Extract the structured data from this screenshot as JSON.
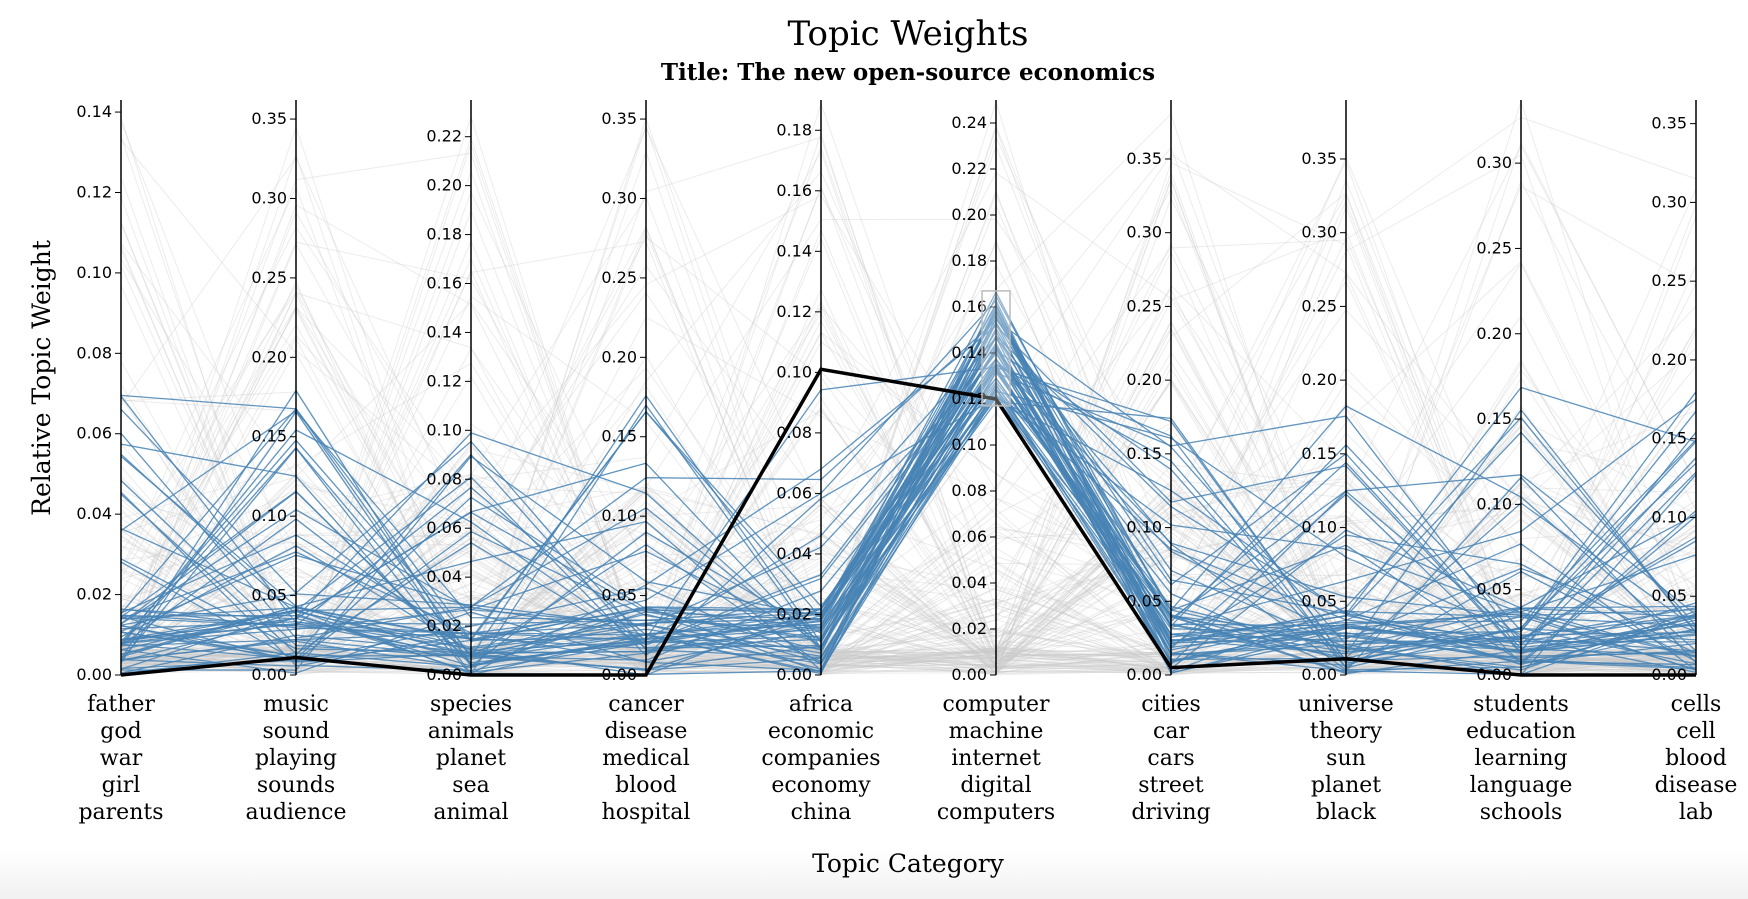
{
  "chart_data": {
    "type": "parallel-coordinates",
    "title": "Topic Weights",
    "subtitle": "Title: The new open-source economics",
    "xlabel": "Topic Category",
    "ylabel": "Relative Topic Weight",
    "grid": false,
    "colors": {
      "context": "#c8c8c8",
      "brushed": "#4682b4",
      "highlight": "#000000",
      "brush_box": "#bbbbbb"
    },
    "axes": [
      {
        "words": [
          "father",
          "god",
          "war",
          "girl",
          "parents"
        ],
        "ylim": [
          0,
          0.143
        ],
        "ticks": [
          "0.00",
          "0.02",
          "0.04",
          "0.06",
          "0.08",
          "0.10",
          "0.12",
          "0.14"
        ]
      },
      {
        "words": [
          "music",
          "sound",
          "playing",
          "sounds",
          "audience"
        ],
        "ylim": [
          0,
          0.362
        ],
        "ticks": [
          "0.00",
          "0.05",
          "0.10",
          "0.15",
          "0.20",
          "0.25",
          "0.30",
          "0.35"
        ]
      },
      {
        "words": [
          "species",
          "animals",
          "planet",
          "sea",
          "animal"
        ],
        "ylim": [
          0,
          0.235
        ],
        "ticks": [
          "0.00",
          "0.02",
          "0.04",
          "0.06",
          "0.08",
          "0.10",
          "0.12",
          "0.14",
          "0.16",
          "0.18",
          "0.20",
          "0.22"
        ]
      },
      {
        "words": [
          "cancer",
          "disease",
          "medical",
          "blood",
          "hospital"
        ],
        "ylim": [
          0,
          0.362
        ],
        "ticks": [
          "0.00",
          "0.05",
          "0.10",
          "0.15",
          "0.20",
          "0.25",
          "0.30",
          "0.35"
        ]
      },
      {
        "words": [
          "africa",
          "economic",
          "companies",
          "economy",
          "china"
        ],
        "ylim": [
          0,
          0.19
        ],
        "ticks": [
          "0.00",
          "0.02",
          "0.04",
          "0.06",
          "0.08",
          "0.10",
          "0.12",
          "0.14",
          "0.16",
          "0.18"
        ]
      },
      {
        "words": [
          "computer",
          "machine",
          "internet",
          "digital",
          "computers"
        ],
        "ylim": [
          0,
          0.25
        ],
        "ticks": [
          "0.00",
          "0.02",
          "0.04",
          "0.06",
          "0.08",
          "0.10",
          "0.12",
          "0.14",
          "0.16",
          "0.18",
          "0.20",
          "0.22",
          "0.24"
        ]
      },
      {
        "words": [
          "cities",
          "car",
          "cars",
          "street",
          "driving"
        ],
        "ylim": [
          0,
          0.39
        ],
        "ticks": [
          "0.00",
          "0.05",
          "0.10",
          "0.15",
          "0.20",
          "0.25",
          "0.30",
          "0.35"
        ]
      },
      {
        "words": [
          "universe",
          "theory",
          "sun",
          "planet",
          "black"
        ],
        "ylim": [
          0,
          0.39
        ],
        "ticks": [
          "0.00",
          "0.05",
          "0.10",
          "0.15",
          "0.20",
          "0.25",
          "0.30",
          "0.35"
        ]
      },
      {
        "words": [
          "students",
          "education",
          "learning",
          "language",
          "schools"
        ],
        "ylim": [
          0,
          0.337
        ],
        "ticks": [
          "0.00",
          "0.05",
          "0.10",
          "0.15",
          "0.20",
          "0.25",
          "0.30"
        ]
      },
      {
        "words": [
          "cells",
          "cell",
          "blood",
          "disease",
          "lab"
        ],
        "ylim": [
          0,
          0.365
        ],
        "ticks": [
          "0.00",
          "0.05",
          "0.10",
          "0.15",
          "0.20",
          "0.25",
          "0.30",
          "0.35"
        ]
      }
    ],
    "highlighted_document": {
      "name": "The new open-source economics",
      "values": [
        0.0,
        0.011,
        0.0,
        0.0,
        0.101,
        0.12,
        0.005,
        0.011,
        0.0,
        0.0
      ]
    },
    "brush": {
      "axis": 5,
      "range": [
        0.117,
        0.167
      ]
    },
    "background_document_count": 260
  }
}
